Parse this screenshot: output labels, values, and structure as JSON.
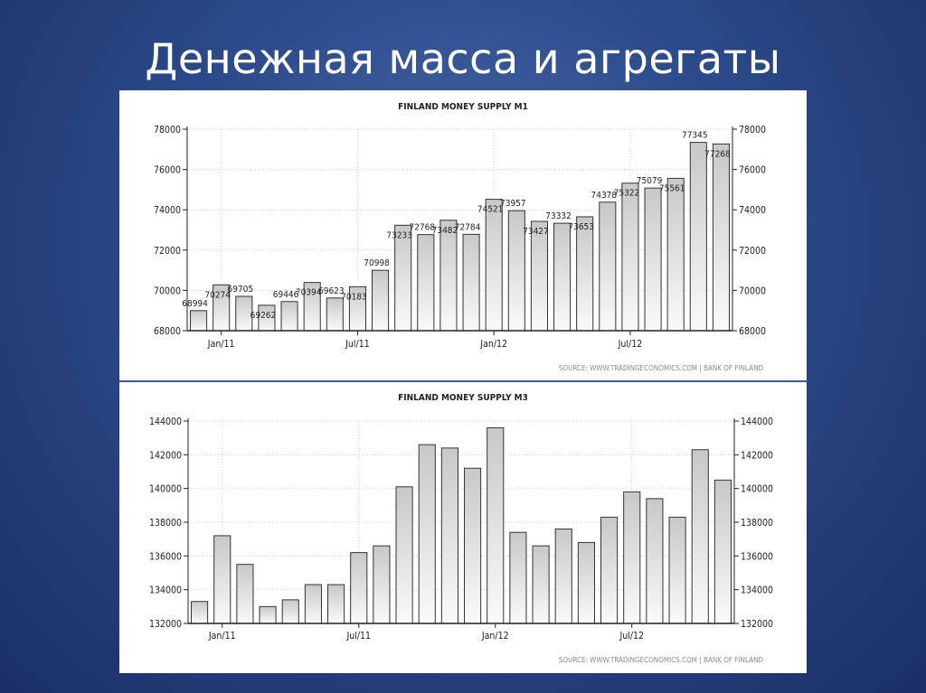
{
  "slide": {
    "title": "Денежная масса и агрегаты"
  },
  "chart_data": [
    {
      "type": "bar",
      "title": "FINLAND MONEY SUPPLY M1",
      "source": "SOURCE: WWW.TRADINGECONOMICS.COM  |  BANK OF FINLAND",
      "x_tick_labels": [
        {
          "index": 1,
          "label": "Jan/11"
        },
        {
          "index": 7,
          "label": "Jul/11"
        },
        {
          "index": 13,
          "label": "Jan/12"
        },
        {
          "index": 19,
          "label": "Jul/12"
        }
      ],
      "values": [
        68994,
        70274,
        69705,
        69262,
        69446,
        70394,
        69623,
        70183,
        70998,
        73233,
        72768,
        73482,
        72784,
        74521,
        73957,
        73427,
        73332,
        73653,
        74378,
        75322,
        75079,
        75561,
        77345,
        77268
      ],
      "data_labels": true,
      "ylim": [
        68000,
        78000
      ],
      "yticks": [
        68000,
        70000,
        72000,
        74000,
        76000,
        78000
      ],
      "y_axes": "left-and-right",
      "grid": true
    },
    {
      "type": "bar",
      "title": "FINLAND MONEY SUPPLY M3",
      "source": "SOURCE: WWW.TRADINGECONOMICS.COM  |  BANK OF FINLAND",
      "x_tick_labels": [
        {
          "index": 1,
          "label": "Jan/11"
        },
        {
          "index": 7,
          "label": "Jul/11"
        },
        {
          "index": 13,
          "label": "Jan/12"
        },
        {
          "index": 19,
          "label": "Jul/12"
        }
      ],
      "values": [
        133300,
        137200,
        135500,
        133000,
        133400,
        134300,
        134300,
        136200,
        136600,
        140100,
        142600,
        142400,
        141200,
        143600,
        137400,
        136600,
        137600,
        136800,
        138300,
        139800,
        139400,
        138300,
        142300,
        140500
      ],
      "data_labels": false,
      "ylim": [
        132000,
        144000
      ],
      "yticks": [
        132000,
        134000,
        136000,
        138000,
        140000,
        142000,
        144000
      ],
      "y_axes": "left-and-right",
      "grid": true
    }
  ]
}
